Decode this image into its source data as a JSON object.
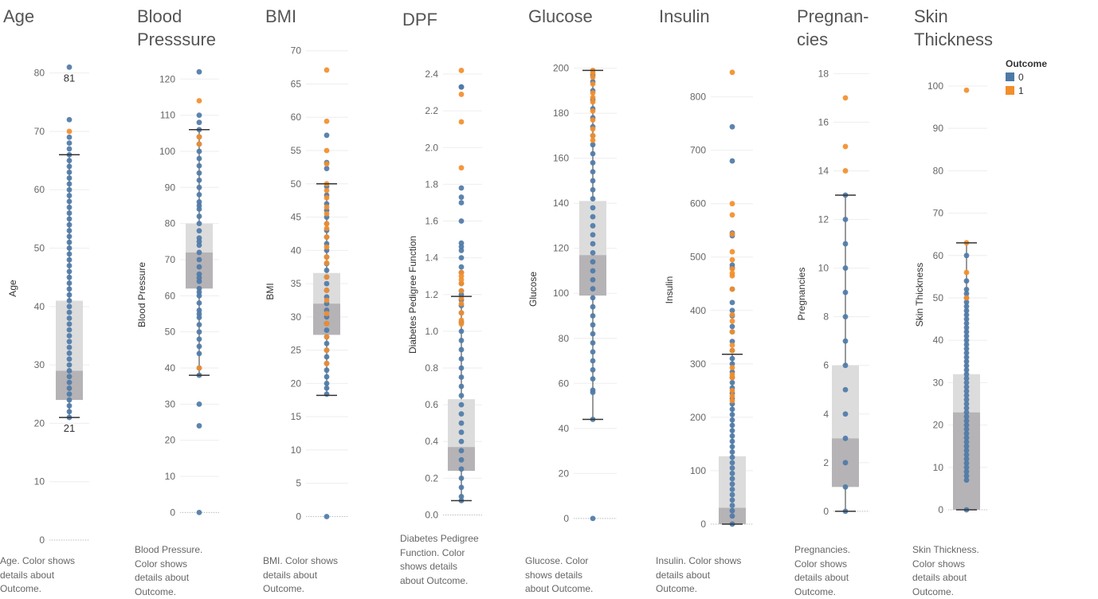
{
  "colors": {
    "outcome_0": "#4e79a7",
    "outcome_1": "#f28e2b",
    "box_upper": "#dcdcdc",
    "box_lower": "#b5b3b6",
    "whisker": "#333333",
    "tick_text": "#666666",
    "gridline": "#eeeeee"
  },
  "legend": {
    "title": "Outcome",
    "items": [
      {
        "label": "0",
        "color": "#4e79a7"
      },
      {
        "label": "1",
        "color": "#f28e2b"
      }
    ]
  },
  "chart_data": [
    {
      "type": "box",
      "title": "Age",
      "ylabel": "Age",
      "caption": "Age.  Color shows details about Outcome.",
      "ticks": [
        0,
        10,
        20,
        30,
        40,
        50,
        60,
        70,
        80
      ],
      "ylim": [
        0,
        85
      ],
      "box": {
        "lower_whisker": 21,
        "q1": 24,
        "median": 29,
        "q3": 41,
        "upper_whisker": 66
      },
      "annotations": [
        {
          "value": 81,
          "text": "81",
          "pos": "below"
        },
        {
          "value": 21,
          "text": "21",
          "pos": "below"
        }
      ],
      "points": {
        "outcome_0": [
          81,
          72,
          69,
          68,
          67,
          66,
          65,
          64,
          63,
          62,
          61,
          60,
          59,
          58,
          57,
          56,
          55,
          54,
          53,
          52,
          51,
          50,
          49,
          48,
          47,
          46,
          45,
          44,
          43,
          42,
          41,
          40,
          39,
          38,
          37,
          36,
          35,
          34,
          33,
          32,
          31,
          30,
          29,
          28,
          27,
          26,
          25,
          24,
          23,
          22,
          21
        ],
        "outcome_1": [
          70
        ]
      }
    },
    {
      "type": "box",
      "title": "Blood Presssure",
      "ylabel": "Blood Pressure",
      "caption": "Blood Pressure.  Color shows details about Outcome.",
      "ticks": [
        0,
        10,
        20,
        30,
        40,
        50,
        60,
        70,
        80,
        90,
        100,
        110,
        120
      ],
      "ylim": [
        -3,
        128
      ],
      "box": {
        "lower_whisker": 38,
        "q1": 62,
        "median": 72,
        "q3": 80,
        "upper_whisker": 106
      },
      "annotations": [],
      "points": {
        "outcome_0": [
          122,
          110,
          108,
          106,
          104,
          102,
          100,
          98,
          96,
          94,
          92,
          90,
          88,
          86,
          85,
          84,
          82,
          80,
          78,
          76,
          75,
          74,
          72,
          70,
          68,
          66,
          65,
          64,
          62,
          61,
          60,
          58,
          56,
          55,
          54,
          52,
          50,
          48,
          46,
          44,
          40,
          38,
          30,
          24,
          0
        ],
        "outcome_1": [
          114,
          104,
          102,
          40
        ]
      }
    },
    {
      "type": "box",
      "title": "BMI",
      "ylabel": "BMI",
      "caption": "BMI.  Color shows details about Outcome.",
      "ticks": [
        0,
        5,
        10,
        15,
        20,
        25,
        30,
        35,
        40,
        45,
        50,
        55,
        60,
        65,
        70
      ],
      "ylim": [
        -1.5,
        72
      ],
      "box": {
        "lower_whisker": 18.2,
        "q1": 27.3,
        "median": 32,
        "q3": 36.6,
        "upper_whisker": 50
      },
      "annotations": [],
      "points": {
        "outcome_0": [
          57.3,
          53.2,
          52.3,
          49.6,
          48.3,
          47,
          46,
          45,
          44,
          43,
          42,
          41,
          40,
          39,
          38,
          37,
          36,
          35,
          34,
          33,
          32,
          31,
          30,
          29,
          28,
          27,
          26,
          25,
          24,
          23,
          22,
          21,
          20,
          19.3,
          18.4,
          0
        ],
        "outcome_1": [
          67.1,
          59.4,
          55,
          53,
          50,
          49,
          47.9,
          46.5,
          45.5,
          44,
          43.3,
          42,
          40.5,
          39,
          38.1,
          36,
          34,
          32.5,
          30.5,
          29,
          27,
          25,
          23
        ]
      }
    },
    {
      "type": "box",
      "title": "DPF",
      "ylabel": "Diabetes Pedigree Function",
      "caption": "Diabetes Pedigree Function.  Color shows details about Outcome.",
      "ticks": [
        0.0,
        0.2,
        0.4,
        0.6,
        0.8,
        1.0,
        1.2,
        1.4,
        1.6,
        1.8,
        2.0,
        2.2,
        2.4
      ],
      "ylim": [
        -0.05,
        2.5
      ],
      "box": {
        "lower_whisker": 0.078,
        "q1": 0.24,
        "median": 0.37,
        "q3": 0.63,
        "upper_whisker": 1.19
      },
      "annotations": [],
      "points": {
        "outcome_0": [
          2.33,
          2.33,
          1.78,
          1.73,
          1.7,
          1.6,
          1.48,
          1.46,
          1.44,
          1.4,
          1.35,
          1.32,
          1.26,
          1.22,
          1.2,
          1.17,
          1.14,
          1.1,
          1.05,
          1.0,
          0.95,
          0.9,
          0.85,
          0.8,
          0.75,
          0.7,
          0.65,
          0.6,
          0.55,
          0.5,
          0.45,
          0.4,
          0.35,
          0.3,
          0.25,
          0.2,
          0.15,
          0.1,
          0.078
        ],
        "outcome_1": [
          2.42,
          2.29,
          2.14,
          1.89,
          1.32,
          1.3,
          1.28,
          1.26,
          1.22,
          1.18,
          1.15,
          1.1,
          1.06,
          1.04
        ]
      }
    },
    {
      "type": "box",
      "title": "Glucose",
      "ylabel": "Glucose",
      "caption": "Glucose.  Color shows details about Outcome.",
      "ticks": [
        0,
        20,
        40,
        60,
        80,
        100,
        120,
        140,
        160,
        180,
        200
      ],
      "ylim": [
        -5,
        208
      ],
      "box": {
        "lower_whisker": 44,
        "q1": 99,
        "median": 117,
        "q3": 141,
        "upper_whisker": 199
      },
      "annotations": [],
      "points": {
        "outcome_0": [
          197,
          194,
          190,
          186,
          182,
          178,
          174,
          170,
          166,
          162,
          158,
          154,
          150,
          146,
          142,
          138,
          134,
          130,
          126,
          122,
          118,
          114,
          110,
          106,
          102,
          98,
          94,
          90,
          86,
          82,
          78,
          74,
          70,
          66,
          62,
          57,
          56,
          44,
          0
        ],
        "outcome_1": [
          199,
          198,
          196,
          193,
          189,
          187,
          185,
          181,
          177,
          173,
          170,
          168
        ]
      }
    },
    {
      "type": "box",
      "title": "Insulin",
      "ylabel": "Insulin",
      "caption": "Insulin.  Color shows details about Outcome.",
      "ticks": [
        0,
        100,
        200,
        300,
        400,
        500,
        600,
        700,
        800
      ],
      "ylim": [
        -15,
        880
      ],
      "box": {
        "lower_whisker": 0,
        "q1": 0,
        "median": 30.5,
        "q3": 127,
        "upper_whisker": 318
      },
      "annotations": [],
      "points": {
        "outcome_0": [
          744,
          680,
          545,
          540,
          485,
          480,
          440,
          415,
          400,
          390,
          370,
          360,
          342,
          325,
          310,
          300,
          285,
          275,
          265,
          255,
          245,
          235,
          225,
          215,
          205,
          195,
          185,
          175,
          165,
          155,
          145,
          135,
          125,
          115,
          105,
          95,
          85,
          75,
          65,
          55,
          45,
          35,
          25,
          15,
          0
        ],
        "outcome_1": [
          846,
          600,
          579,
          543,
          510,
          495,
          478,
          470,
          465,
          440,
          392,
          380,
          360,
          335,
          325,
          293,
          280,
          274,
          250,
          240,
          231
        ]
      }
    },
    {
      "type": "box",
      "title": "Pregnan-\ncies",
      "ylabel": "Pregnancies",
      "caption": "Pregnancies.  Color shows details about Outcome.",
      "ticks": [
        0,
        2,
        4,
        6,
        8,
        10,
        12,
        14,
        16,
        18
      ],
      "ylim": [
        -0.2,
        18.6
      ],
      "box": {
        "lower_whisker": 0,
        "q1": 1,
        "median": 3,
        "q3": 6,
        "upper_whisker": 13
      },
      "annotations": [],
      "points": {
        "outcome_0": [
          13,
          12,
          11,
          10,
          9,
          8,
          7,
          6,
          5,
          4,
          3,
          2,
          1,
          0
        ],
        "outcome_1": [
          17,
          15,
          14
        ]
      }
    },
    {
      "type": "box",
      "title": "Skin\nThickness",
      "ylabel": "Skin Thickness",
      "caption": "Skin Thickness.  Color shows details about Outcome.",
      "ticks": [
        0,
        10,
        20,
        30,
        40,
        50,
        60,
        70,
        80,
        90,
        100
      ],
      "ylim": [
        -1.5,
        103
      ],
      "box": {
        "lower_whisker": 0,
        "q1": 0,
        "median": 23,
        "q3": 32,
        "upper_whisker": 63
      },
      "annotations": [],
      "points": {
        "outcome_0": [
          60,
          54,
          52,
          51,
          50,
          49,
          48,
          47,
          46,
          45,
          44,
          43,
          42,
          41,
          40,
          39,
          38,
          37,
          36,
          35,
          34,
          33,
          32,
          31,
          30,
          29,
          28,
          27,
          26,
          25,
          24,
          23,
          22,
          21,
          20,
          19,
          18,
          17,
          16,
          15,
          14,
          13,
          12,
          11,
          10,
          9,
          8,
          7,
          0
        ],
        "outcome_1": [
          99,
          63,
          56,
          50
        ]
      }
    }
  ]
}
